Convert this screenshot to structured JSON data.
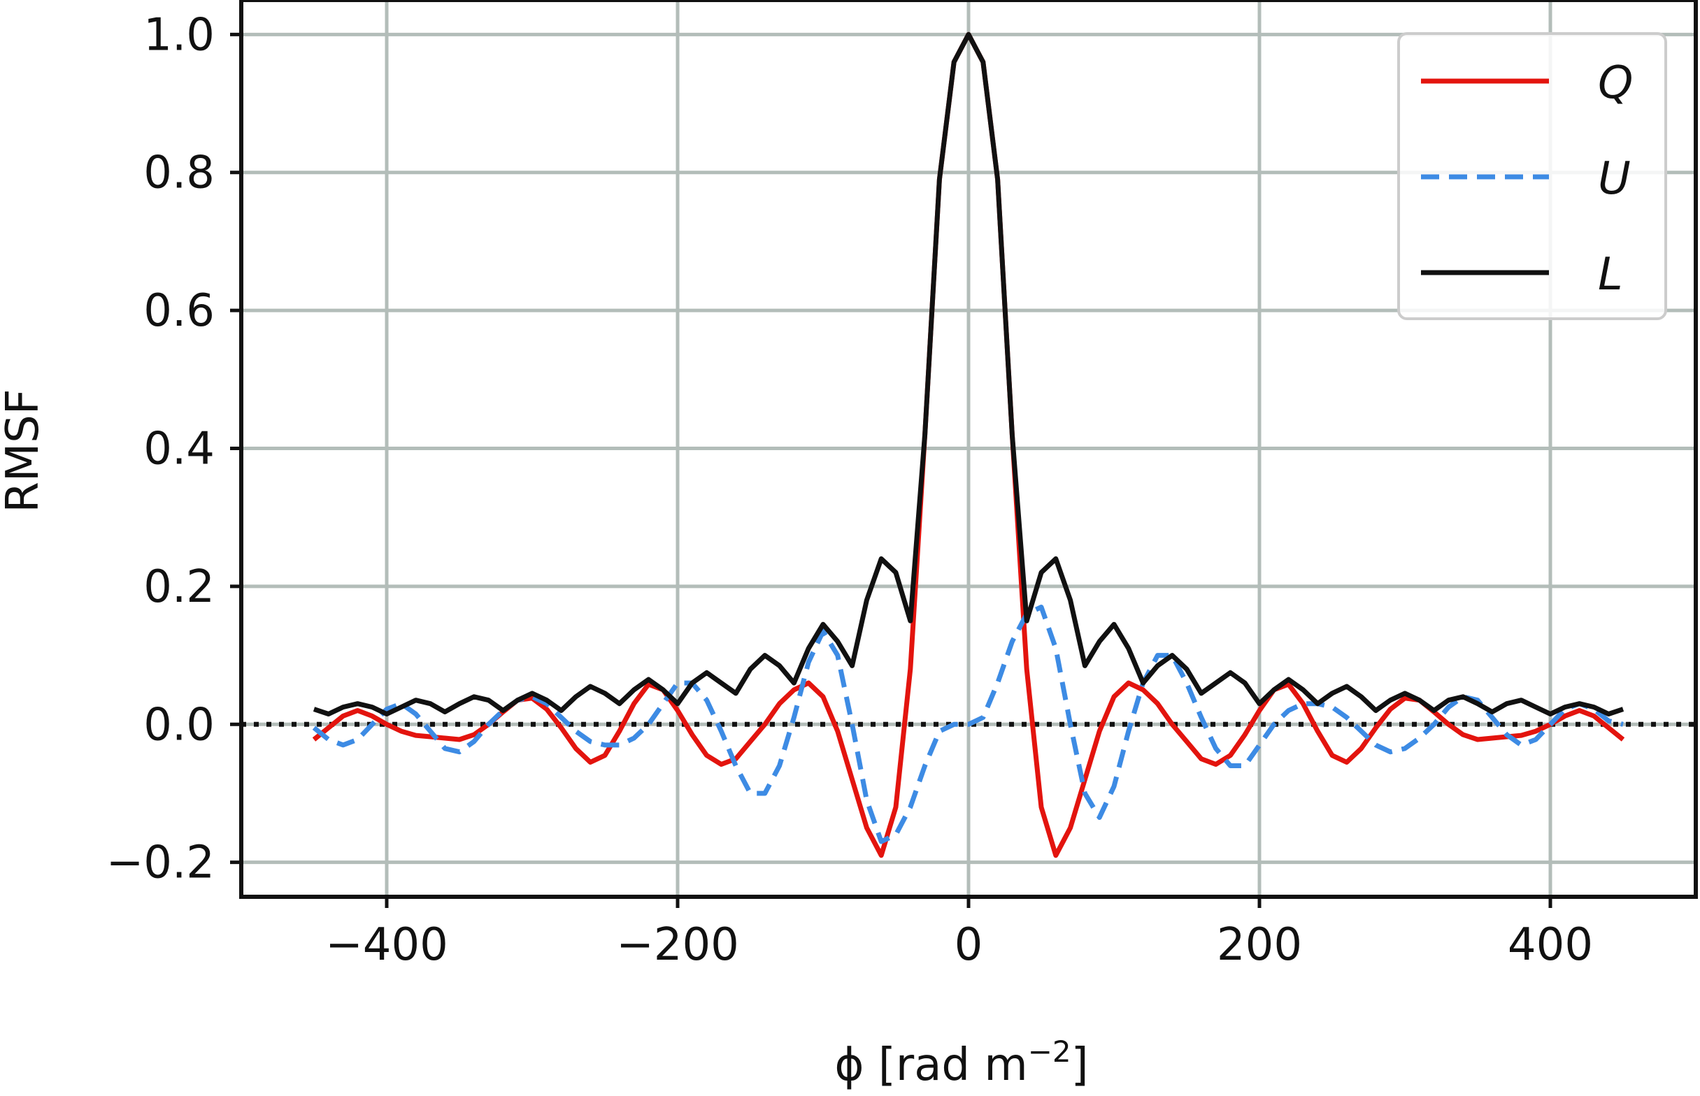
{
  "chart_data": {
    "type": "line",
    "title": "",
    "xlabel": "ϕ [rad m",
    "xlabel_superscript": "−2",
    "xlabel_close": "]",
    "ylabel": "RMSF",
    "xlim": [
      -500,
      500
    ],
    "ylim": [
      -0.25,
      1.05
    ],
    "x_ticks": [
      -400,
      -200,
      0,
      200,
      400
    ],
    "x_tick_labels": [
      "−400",
      "−200",
      "0",
      "200",
      "400"
    ],
    "y_ticks": [
      -0.2,
      0.0,
      0.2,
      0.4,
      0.6,
      0.8,
      1.0
    ],
    "y_tick_labels": [
      "−0.2",
      "0.0",
      "0.2",
      "0.4",
      "0.6",
      "0.8",
      "1.0"
    ],
    "grid": true,
    "zero_line": {
      "y": 0,
      "style": "dotted",
      "color": "#111111"
    },
    "legend": {
      "position": "top-right"
    },
    "x": [
      -450,
      -440,
      -430,
      -420,
      -410,
      -400,
      -390,
      -380,
      -370,
      -360,
      -350,
      -340,
      -330,
      -320,
      -310,
      -300,
      -290,
      -280,
      -270,
      -260,
      -250,
      -240,
      -230,
      -220,
      -210,
      -200,
      -190,
      -180,
      -170,
      -160,
      -150,
      -140,
      -130,
      -120,
      -110,
      -100,
      -90,
      -80,
      -70,
      -60,
      -50,
      -40,
      -30,
      -20,
      -10,
      0,
      10,
      20,
      30,
      40,
      50,
      60,
      70,
      80,
      90,
      100,
      110,
      120,
      130,
      140,
      150,
      160,
      170,
      180,
      190,
      200,
      210,
      220,
      230,
      240,
      250,
      260,
      270,
      280,
      290,
      300,
      310,
      320,
      330,
      340,
      350,
      360,
      370,
      380,
      390,
      400,
      410,
      420,
      430,
      440,
      450
    ],
    "series": [
      {
        "name": "Q",
        "color": "#e3140e",
        "dash": "solid",
        "values": [
          -0.022,
          -0.005,
          0.012,
          0.02,
          0.012,
          0.0,
          -0.01,
          -0.016,
          -0.018,
          -0.02,
          -0.022,
          -0.015,
          0.0,
          0.018,
          0.035,
          0.038,
          0.022,
          -0.005,
          -0.035,
          -0.055,
          -0.045,
          -0.01,
          0.03,
          0.058,
          0.05,
          0.02,
          -0.015,
          -0.045,
          -0.058,
          -0.05,
          -0.025,
          0.0,
          0.03,
          0.05,
          0.06,
          0.04,
          -0.01,
          -0.08,
          -0.15,
          -0.19,
          -0.12,
          0.08,
          0.42,
          0.79,
          0.96,
          1.0,
          0.96,
          0.79,
          0.42,
          0.08,
          -0.12,
          -0.19,
          -0.15,
          -0.08,
          -0.01,
          0.04,
          0.06,
          0.05,
          0.03,
          0.0,
          -0.025,
          -0.05,
          -0.058,
          -0.045,
          -0.015,
          0.02,
          0.05,
          0.058,
          0.03,
          -0.01,
          -0.045,
          -0.055,
          -0.035,
          -0.005,
          0.022,
          0.038,
          0.035,
          0.018,
          0.0,
          -0.015,
          -0.022,
          -0.02,
          -0.018,
          -0.016,
          -0.01,
          0.0,
          0.012,
          0.02,
          0.012,
          -0.005,
          -0.022
        ]
      },
      {
        "name": "U",
        "color": "#3d8be4",
        "dash": "dashed",
        "values": [
          -0.005,
          -0.022,
          -0.03,
          -0.022,
          0.0,
          0.022,
          0.03,
          0.015,
          -0.01,
          -0.035,
          -0.04,
          -0.025,
          0.0,
          0.02,
          0.035,
          0.04,
          0.03,
          0.01,
          -0.01,
          -0.025,
          -0.03,
          -0.03,
          -0.02,
          0.0,
          0.03,
          0.06,
          0.06,
          0.035,
          -0.01,
          -0.06,
          -0.1,
          -0.1,
          -0.06,
          0.01,
          0.09,
          0.135,
          0.1,
          0.0,
          -0.11,
          -0.17,
          -0.16,
          -0.12,
          -0.06,
          -0.01,
          0.0,
          0.0,
          0.01,
          0.06,
          0.12,
          0.16,
          0.17,
          0.11,
          0.0,
          -0.1,
          -0.135,
          -0.09,
          -0.01,
          0.06,
          0.1,
          0.1,
          0.06,
          0.01,
          -0.035,
          -0.06,
          -0.06,
          -0.03,
          0.0,
          0.02,
          0.03,
          0.03,
          0.025,
          0.01,
          -0.01,
          -0.03,
          -0.04,
          -0.035,
          -0.02,
          0.0,
          0.025,
          0.04,
          0.035,
          0.01,
          -0.015,
          -0.03,
          -0.022,
          0.0,
          0.022,
          0.03,
          0.022,
          0.005,
          0.0
        ]
      },
      {
        "name": "L",
        "color": "#111111",
        "dash": "solid",
        "values": [
          0.022,
          0.015,
          0.025,
          0.03,
          0.025,
          0.015,
          0.025,
          0.035,
          0.03,
          0.018,
          0.03,
          0.04,
          0.035,
          0.02,
          0.035,
          0.045,
          0.035,
          0.02,
          0.04,
          0.055,
          0.045,
          0.03,
          0.05,
          0.065,
          0.05,
          0.03,
          0.06,
          0.075,
          0.06,
          0.045,
          0.08,
          0.1,
          0.085,
          0.06,
          0.11,
          0.145,
          0.12,
          0.085,
          0.18,
          0.24,
          0.22,
          0.15,
          0.42,
          0.79,
          0.96,
          1.0,
          0.96,
          0.79,
          0.42,
          0.15,
          0.22,
          0.24,
          0.18,
          0.085,
          0.12,
          0.145,
          0.11,
          0.06,
          0.085,
          0.1,
          0.08,
          0.045,
          0.06,
          0.075,
          0.06,
          0.03,
          0.05,
          0.065,
          0.05,
          0.03,
          0.045,
          0.055,
          0.04,
          0.02,
          0.035,
          0.045,
          0.035,
          0.02,
          0.035,
          0.04,
          0.03,
          0.018,
          0.03,
          0.035,
          0.025,
          0.015,
          0.025,
          0.03,
          0.025,
          0.015,
          0.022
        ]
      }
    ]
  }
}
